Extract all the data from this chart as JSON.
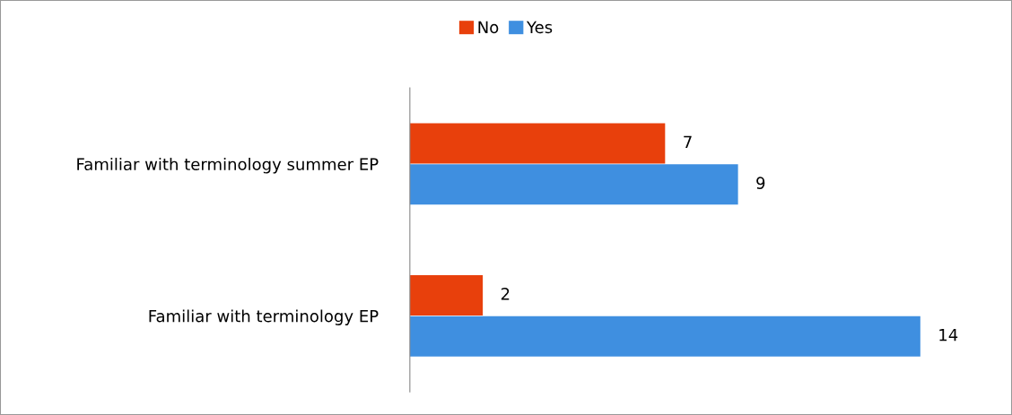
{
  "chart_data": {
    "type": "bar",
    "orientation": "horizontal",
    "categories": [
      "Familiar with terminology summer EP",
      "Familiar with terminology EP"
    ],
    "series": [
      {
        "name": "No",
        "color": "#e8400c",
        "values": [
          7,
          2
        ]
      },
      {
        "name": "Yes",
        "color": "#3f8fe0",
        "values": [
          9,
          14
        ]
      }
    ],
    "data_labels": true,
    "legend": "top",
    "grid": false
  }
}
